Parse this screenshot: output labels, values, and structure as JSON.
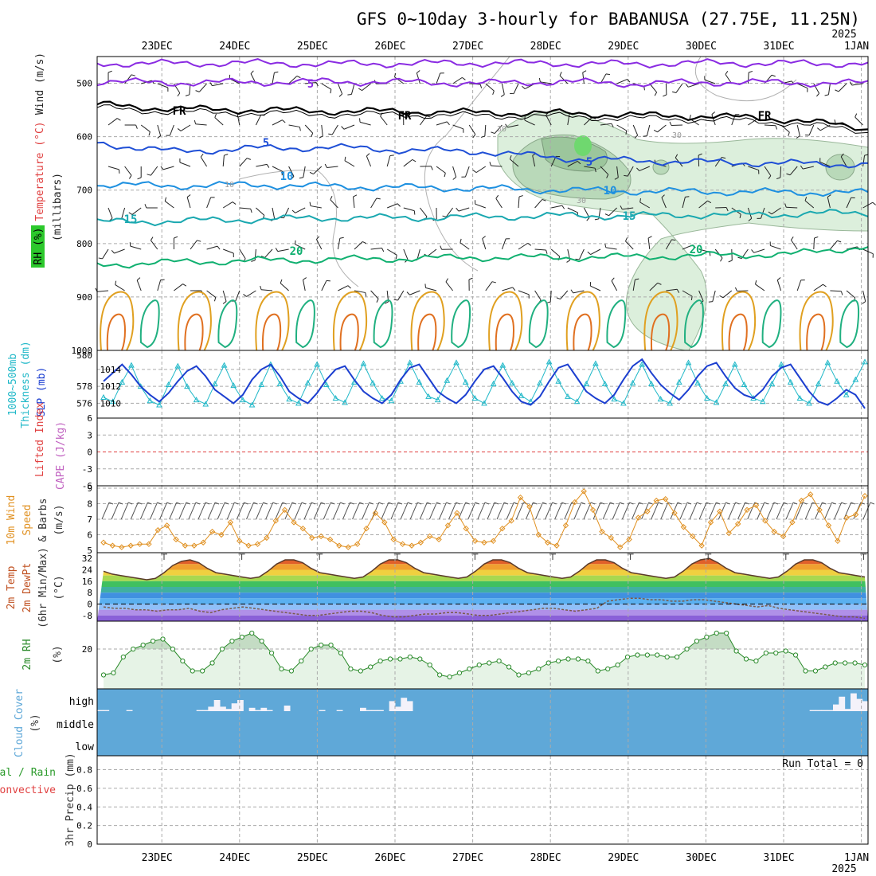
{
  "title": "GFS 0~10day 3-hourly for BABANUSA (27.75E, 11.25N)",
  "dates": [
    "23DEC",
    "24DEC",
    "25DEC",
    "26DEC",
    "27DEC",
    "28DEC",
    "29DEC",
    "30DEC",
    "31DEC",
    "1JAN"
  ],
  "year": "2025",
  "chart_data": [
    {
      "type": "line",
      "panel": "upper_air",
      "ylabel_parts": [
        "RH (%)",
        "Temperature (°C)",
        "Wind (m/s)",
        "(millibars)"
      ],
      "yticks": [
        "500",
        "600",
        "700",
        "800",
        "900",
        "1000"
      ],
      "ylim": [
        450,
        1000
      ],
      "isotherms": [
        {
          "name": "0",
          "label": "",
          "level": [
            463,
            463,
            462,
            464,
            463,
            462,
            463,
            464,
            462,
            463,
            463
          ]
        },
        {
          "name": "-5",
          "label": "5",
          "level": [
            497,
            499,
            498,
            497,
            498,
            500,
            497,
            501,
            498,
            499,
            500
          ]
        },
        {
          "name": "FR",
          "label": "FR",
          "level": [
            540,
            548,
            550,
            552,
            553,
            555,
            556,
            560,
            562,
            568,
            585
          ]
        },
        {
          "name": "5",
          "label": "5",
          "level": [
            612,
            628,
            622,
            620,
            625,
            628,
            640,
            645,
            648,
            650,
            652
          ]
        },
        {
          "name": "10",
          "label": "10",
          "level": [
            690,
            692,
            690,
            693,
            695,
            697,
            700,
            702,
            703,
            704,
            705
          ]
        },
        {
          "name": "15",
          "label": "15",
          "level": [
            760,
            758,
            755,
            752,
            752,
            750,
            748,
            748,
            746,
            745,
            742
          ]
        },
        {
          "name": "20",
          "label": "20",
          "level": [
            840,
            835,
            832,
            830,
            828,
            826,
            826,
            825,
            822,
            820,
            805
          ]
        }
      ],
      "rh_contour_labels": [
        "10",
        "30",
        "30",
        "30"
      ]
    },
    {
      "type": "line",
      "panel": "thickness_slp",
      "ylabel_parts": [
        "1000~500mb",
        "Thickness (dm)",
        "SLP (mb)"
      ],
      "yticks_left": [
        "576",
        "578",
        "580"
      ],
      "yticks_right": [
        "1010",
        "1012",
        "1014"
      ],
      "series": [
        {
          "name": "Thickness (dm)",
          "values": [
            1010.7,
            1010.2,
            1012.5,
            1014.5,
            1012.0,
            1010.3,
            1009.8,
            1012.2,
            1014.4,
            1012.0,
            1010.4,
            1009.9,
            1012.3,
            1014.5,
            1012.1,
            1010.4,
            1009.8,
            1012.2,
            1014.6,
            1012.3,
            1010.5,
            1010.0,
            1012.4,
            1014.6,
            1012.2,
            1010.6,
            1010.1,
            1012.5,
            1014.7,
            1012.4,
            1010.6,
            1010.3,
            1012.6,
            1014.8,
            1012.5,
            1010.8,
            1010.4,
            1012.7,
            1014.8,
            1012.5,
            1010.6,
            1010.0,
            1012.3,
            1014.5,
            1012.4,
            1010.9,
            1010.2,
            1012.4,
            1014.9,
            1012.6,
            1010.8,
            1010.2,
            1012.3,
            1014.7,
            1012.3,
            1010.5,
            1010.0,
            1012.4,
            1014.6,
            1012.3,
            1010.5,
            1010.0,
            1012.5,
            1014.8,
            1012.4,
            1010.6,
            1010.1,
            1012.3,
            1014.6,
            1012.2,
            1010.6,
            1010.2,
            1012.3,
            1014.6,
            1012.5,
            1010.6,
            1010.0,
            1012.3,
            1014.8,
            1012.6,
            1011.0,
            1012.8,
            1014.9
          ]
        },
        {
          "name": "SLP (mb)",
          "values": [
            1012.6,
            1013.6,
            1014.6,
            1013.4,
            1012.0,
            1011.0,
            1010.2,
            1011.2,
            1012.6,
            1013.8,
            1014.4,
            1013.2,
            1011.6,
            1010.8,
            1010.0,
            1011.0,
            1012.8,
            1014.0,
            1014.6,
            1013.2,
            1011.4,
            1010.6,
            1010.0,
            1011.2,
            1012.8,
            1014.0,
            1014.4,
            1012.8,
            1011.4,
            1010.6,
            1010.0,
            1011.0,
            1012.8,
            1014.2,
            1014.6,
            1013.0,
            1011.4,
            1010.6,
            1010.0,
            1011.0,
            1012.6,
            1014.0,
            1014.4,
            1013.0,
            1011.4,
            1010.2,
            1009.8,
            1010.8,
            1012.6,
            1014.2,
            1014.6,
            1013.0,
            1011.4,
            1010.6,
            1010.0,
            1011.0,
            1012.8,
            1014.4,
            1015.2,
            1013.6,
            1012.2,
            1011.2,
            1010.4,
            1011.6,
            1013.2,
            1014.4,
            1014.8,
            1013.2,
            1011.8,
            1011.0,
            1010.6,
            1011.6,
            1013.2,
            1014.2,
            1014.6,
            1013.0,
            1011.4,
            1010.2,
            1009.8,
            1010.6,
            1011.6,
            1011.0,
            1009.4
          ]
        }
      ]
    },
    {
      "type": "line",
      "panel": "stability",
      "ylabel_parts": [
        "Lifted Index",
        "CAPE (J/kg)"
      ],
      "yticks": [
        "6",
        "3",
        "0",
        "-3",
        "-6"
      ],
      "ylim": [
        -6,
        6
      ],
      "series": [
        {
          "name": "Lifted Index",
          "values": []
        },
        {
          "name": "CAPE",
          "values": []
        }
      ]
    },
    {
      "type": "line",
      "panel": "wind10m",
      "ylabel_parts": [
        "10m Wind",
        "Speed",
        "& Barbs",
        "(m/s)"
      ],
      "yticks": [
        "5",
        "6",
        "7",
        "8",
        "9"
      ],
      "ylim": [
        5,
        9
      ],
      "series": [
        {
          "name": "10m Wind Speed (m/s)",
          "values": [
            5.5,
            5.3,
            5.2,
            5.3,
            5.4,
            5.4,
            6.3,
            6.6,
            5.7,
            5.3,
            5.3,
            5.5,
            6.2,
            6.0,
            6.8,
            5.6,
            5.3,
            5.4,
            5.8,
            6.9,
            7.6,
            6.8,
            6.4,
            5.8,
            5.9,
            5.7,
            5.3,
            5.2,
            5.4,
            6.4,
            7.4,
            6.8,
            5.7,
            5.4,
            5.3,
            5.5,
            5.9,
            5.7,
            6.6,
            7.4,
            6.4,
            5.6,
            5.5,
            5.6,
            6.4,
            6.9,
            8.4,
            7.8,
            6.0,
            5.5,
            5.3,
            6.6,
            8.1,
            8.8,
            7.6,
            6.2,
            5.8,
            5.2,
            5.7,
            7.1,
            7.5,
            8.2,
            8.3,
            7.4,
            6.5,
            5.9,
            5.3,
            6.8,
            7.5,
            6.1,
            6.7,
            7.6,
            7.9,
            6.9,
            6.2,
            5.9,
            6.8,
            8.2,
            8.6,
            7.6,
            6.6,
            5.6,
            7.1,
            7.3,
            8.5
          ]
        }
      ]
    },
    {
      "type": "area",
      "panel": "temperature",
      "ylabel_parts": [
        "2m Temp",
        "2m DewPt",
        "(6hr Min/Max)",
        "(°C)"
      ],
      "yticks": [
        "32",
        "24",
        "16",
        "8",
        "0",
        "-8"
      ],
      "ylim": [
        -12,
        36
      ],
      "series": [
        {
          "name": "2m Temp",
          "values": [
            23,
            21,
            20,
            19,
            18,
            17,
            18,
            22,
            27,
            30,
            31,
            29,
            25,
            22,
            21,
            20,
            19,
            18,
            19,
            23,
            28,
            31,
            31,
            29,
            25,
            22,
            21,
            20,
            19,
            18,
            19,
            23,
            28,
            31,
            31,
            29,
            25,
            22,
            21,
            20,
            19,
            18,
            19,
            23,
            28,
            31,
            31,
            29,
            25,
            22,
            21,
            20,
            19,
            18,
            19,
            23,
            28,
            31,
            31,
            29,
            25,
            22,
            21,
            20,
            19,
            18,
            19,
            23,
            28,
            31,
            32,
            29,
            25,
            22,
            21,
            20,
            19,
            18,
            19,
            23,
            28,
            31,
            31,
            29,
            25,
            22,
            21,
            20,
            19
          ]
        },
        {
          "name": "2m DewPt",
          "values": [
            -2,
            -3,
            -3,
            -4,
            -4,
            -5,
            -4,
            -4,
            -3,
            -5,
            -6,
            -4,
            -3,
            -2,
            -3,
            -4,
            -5,
            -6,
            -7,
            -8,
            -8,
            -7,
            -6,
            -5,
            -5,
            -6,
            -8,
            -9,
            -9,
            -8,
            -7,
            -7,
            -6,
            -6,
            -7,
            -8,
            -8,
            -7,
            -6,
            -5,
            -4,
            -3,
            -3,
            -4,
            -5,
            -4,
            -3,
            2,
            3,
            4,
            4,
            3,
            3,
            2,
            2,
            3,
            3,
            2,
            1,
            0,
            -1,
            -2,
            -1,
            -3,
            -4,
            -5,
            -6,
            -7,
            -8,
            -9,
            -9,
            -10
          ]
        }
      ]
    },
    {
      "type": "area",
      "panel": "rh2m",
      "ylabel_parts": [
        "2m RH",
        "(%)"
      ],
      "yticks": [
        "20"
      ],
      "ylim": [
        0,
        34
      ],
      "series": [
        {
          "name": "2m RH (%)",
          "values": [
            7,
            8,
            16,
            20,
            22,
            24,
            25,
            20,
            14,
            9,
            9,
            13,
            20,
            24,
            26,
            28,
            24,
            18,
            10,
            9,
            14,
            20,
            22,
            22,
            18,
            10,
            9,
            11,
            14,
            15,
            15,
            16,
            15,
            12,
            7,
            6,
            8,
            10,
            12,
            13,
            14,
            11,
            7,
            8,
            10,
            13,
            14,
            15,
            15,
            14,
            9,
            10,
            12,
            16,
            17,
            17,
            17,
            16,
            16,
            20,
            24,
            26,
            28,
            28,
            19,
            15,
            14,
            18,
            18,
            19,
            17,
            9,
            9,
            11,
            13,
            13,
            13,
            12
          ]
        }
      ]
    },
    {
      "type": "bar",
      "panel": "cloud",
      "ylabel_parts": [
        "Cloud Cover",
        "(%)"
      ],
      "yticks": [
        "high",
        "middle",
        "low"
      ],
      "series": [
        {
          "name": "High Cloud",
          "values": [
            5,
            5,
            0,
            0,
            0,
            5,
            0,
            0,
            0,
            0,
            0,
            0,
            0,
            0,
            0,
            0,
            0,
            5,
            5,
            20,
            50,
            20,
            10,
            35,
            50,
            0,
            15,
            5,
            15,
            5,
            0,
            0,
            25,
            0,
            0,
            0,
            0,
            0,
            5,
            0,
            0,
            5,
            0,
            0,
            0,
            15,
            5,
            5,
            5,
            0,
            45,
            20,
            60,
            45,
            0,
            0,
            0,
            0,
            0,
            0,
            0,
            0,
            0,
            0,
            0,
            0,
            0,
            0,
            0,
            0,
            0,
            0,
            0,
            0,
            0,
            0,
            0,
            0,
            0,
            0,
            0,
            0,
            0,
            0,
            0,
            0,
            0,
            0,
            0,
            0,
            0,
            0,
            0,
            0,
            0,
            0,
            0,
            0,
            0,
            0,
            0,
            0,
            0,
            0,
            0,
            0,
            0,
            0,
            0,
            0,
            0,
            0,
            0,
            0,
            0,
            0,
            0,
            0,
            0,
            0,
            0,
            0,
            5,
            5,
            5,
            5,
            30,
            65,
            10,
            80,
            55,
            45
          ]
        }
      ]
    },
    {
      "type": "bar",
      "panel": "precip",
      "ylabel_parts": [
        "Total / Rain",
        "Convective",
        "3hr Precip (mm)"
      ],
      "yticks": [
        "0",
        "0.2",
        "0.4",
        "0.6",
        "0.8"
      ],
      "ylim": [
        0,
        1
      ],
      "annotation": "Run Total = 0",
      "series": [
        {
          "name": "Total",
          "values": []
        },
        {
          "name": "Convective",
          "values": []
        }
      ]
    }
  ]
}
